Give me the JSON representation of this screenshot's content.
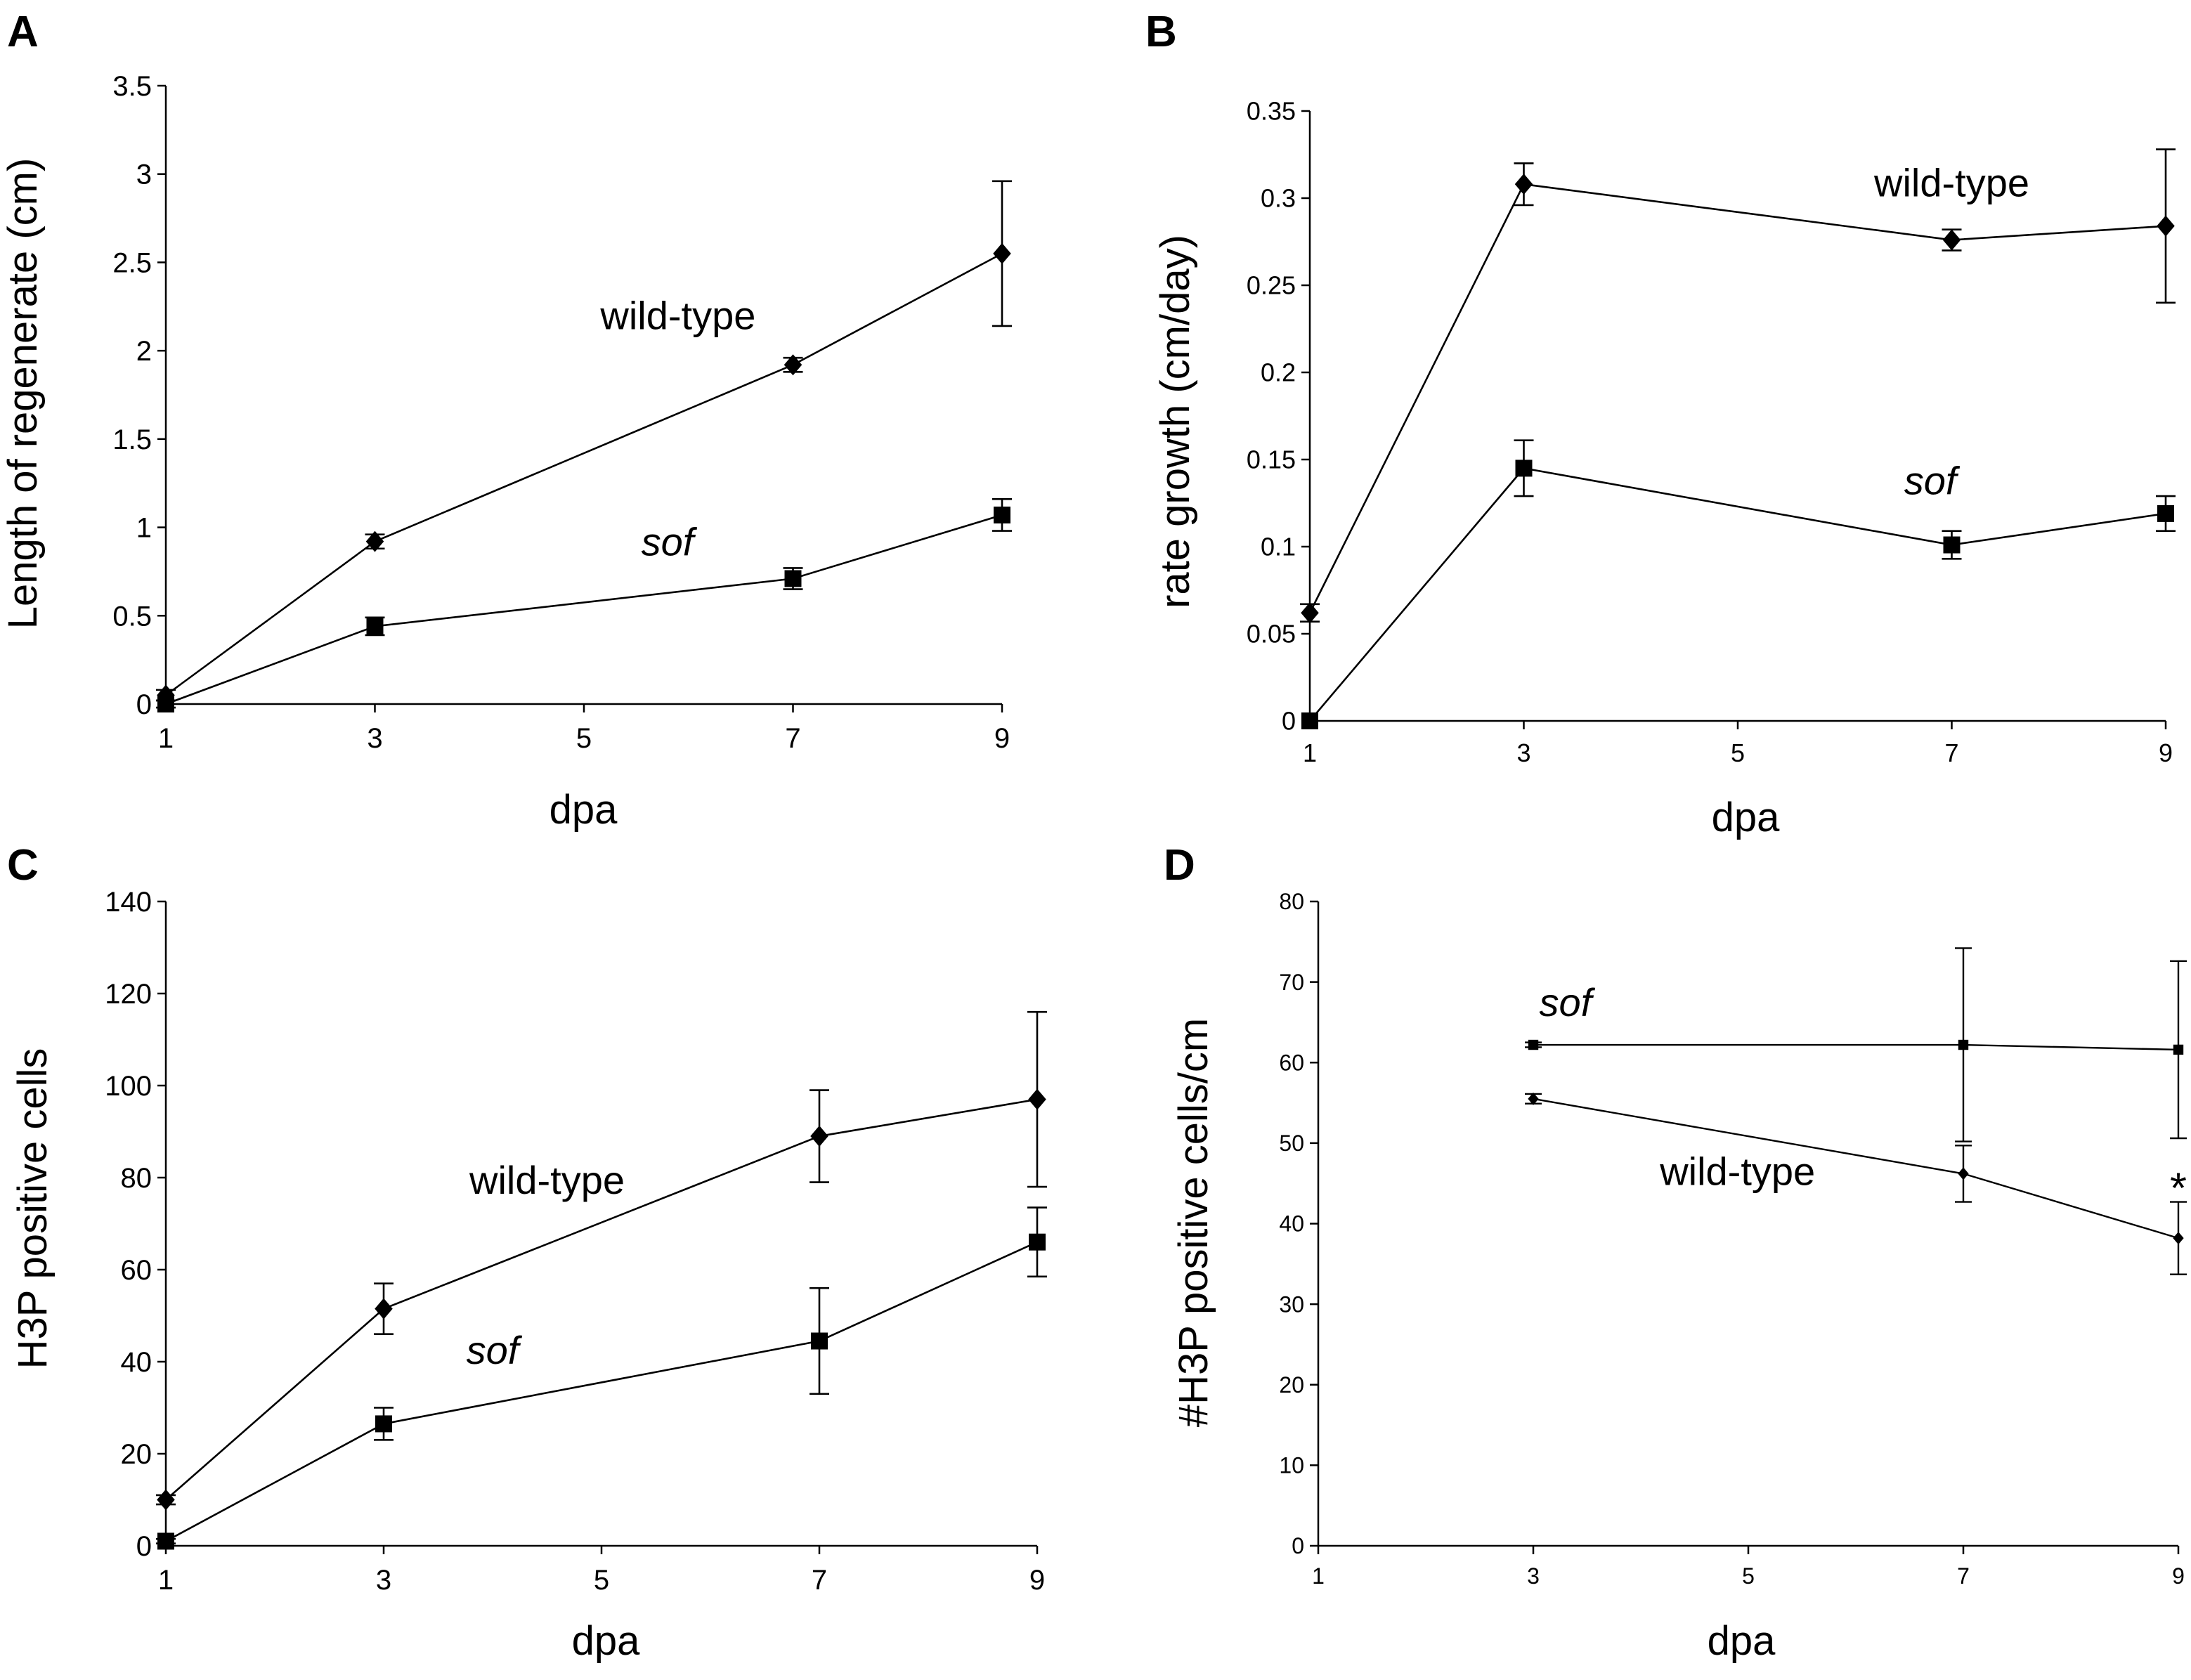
{
  "chart_data": [
    {
      "panel_label": "A",
      "type": "line",
      "xlabel": "dpa",
      "ylabel": "Length of regenerate (cm)",
      "xlim": [
        1,
        9
      ],
      "ylim": [
        0,
        3.5
      ],
      "x_ticks": [
        1,
        3,
        5,
        7,
        9
      ],
      "x_tick_labels": [
        "1",
        "3",
        "5",
        "7",
        "9"
      ],
      "y_ticks": [
        0,
        0.5,
        1,
        1.5,
        2,
        2.5,
        3,
        3.5
      ],
      "y_tick_labels": [
        "0",
        "0.5",
        "1",
        "1.5",
        "2",
        "2.5",
        "3",
        "3.5"
      ],
      "grid": false,
      "series": [
        {
          "label_key": "wild_type",
          "marker": "diamond",
          "x": [
            1,
            3,
            7,
            9
          ],
          "y": [
            0.05,
            0.92,
            1.92,
            2.55
          ],
          "err": [
            0.03,
            0.04,
            0.04,
            0.41
          ]
        },
        {
          "label_key": "sof",
          "marker": "square",
          "x": [
            1,
            3,
            7,
            9
          ],
          "y": [
            0.0,
            0.44,
            0.71,
            1.07
          ],
          "err": [
            0.02,
            0.05,
            0.06,
            0.09
          ]
        }
      ],
      "annotations": [
        {
          "text": "wild-type",
          "x": 5.9,
          "y": 2.2,
          "italic": false
        },
        {
          "text": "sof",
          "x": 5.8,
          "y": 0.92,
          "italic": true
        }
      ]
    },
    {
      "panel_label": "B",
      "type": "line",
      "xlabel": "dpa",
      "ylabel": "rate growth (cm/day)",
      "xlim": [
        1,
        9
      ],
      "ylim": [
        0,
        0.35
      ],
      "x_ticks": [
        1,
        3,
        5,
        7,
        9
      ],
      "x_tick_labels": [
        "1",
        "3",
        "5",
        "7",
        "9"
      ],
      "y_ticks": [
        0,
        0.05,
        0.1,
        0.15,
        0.2,
        0.25,
        0.3,
        0.35
      ],
      "y_tick_labels": [
        "0",
        "0.05",
        "0.1",
        "0.15",
        "0.2",
        "0.25",
        "0.3",
        "0.35"
      ],
      "grid": false,
      "series": [
        {
          "label_key": "wild_type",
          "marker": "diamond",
          "x": [
            1,
            3,
            7,
            9
          ],
          "y": [
            0.062,
            0.308,
            0.276,
            0.284
          ],
          "err": [
            0.005,
            0.012,
            0.006,
            0.044
          ]
        },
        {
          "label_key": "sof",
          "marker": "square",
          "x": [
            1,
            3,
            7,
            9
          ],
          "y": [
            0.0,
            0.145,
            0.101,
            0.119
          ],
          "err": [
            0.0,
            0.016,
            0.008,
            0.01
          ]
        }
      ],
      "annotations": [
        {
          "text": "wild-type",
          "x": 7.0,
          "y": 0.309,
          "italic": false
        },
        {
          "text": "sof",
          "x": 6.8,
          "y": 0.138,
          "italic": true
        }
      ]
    },
    {
      "panel_label": "C",
      "type": "line",
      "xlabel": "dpa",
      "ylabel": "H3P positive cells",
      "xlim": [
        1,
        9
      ],
      "ylim": [
        0,
        140
      ],
      "x_ticks": [
        1,
        3,
        5,
        7,
        9
      ],
      "x_tick_labels": [
        "1",
        "3",
        "5",
        "7",
        "9"
      ],
      "y_ticks": [
        0,
        20,
        40,
        60,
        80,
        100,
        120,
        140
      ],
      "y_tick_labels": [
        "0",
        "20",
        "40",
        "60",
        "80",
        "100",
        "120",
        "140"
      ],
      "grid": false,
      "series": [
        {
          "label_key": "wild_type",
          "marker": "diamond",
          "x": [
            1,
            3,
            7,
            9
          ],
          "y": [
            10,
            51.5,
            89,
            97
          ],
          "err": [
            1,
            5.5,
            10,
            19
          ]
        },
        {
          "label_key": "sof",
          "marker": "square",
          "x": [
            1,
            3,
            7,
            9
          ],
          "y": [
            1,
            26.5,
            44.5,
            66
          ],
          "err": [
            0.5,
            3.5,
            11.5,
            7.5
          ]
        }
      ],
      "annotations": [
        {
          "text": "wild-type",
          "x": 4.5,
          "y": 79.5,
          "italic": false
        },
        {
          "text": "sof",
          "x": 4.0,
          "y": 42.5,
          "italic": true
        }
      ]
    },
    {
      "panel_label": "D",
      "type": "line",
      "xlabel": "dpa",
      "ylabel": "#H3P positive cells/cm",
      "xlim": [
        1,
        9
      ],
      "ylim": [
        0,
        80
      ],
      "x_ticks": [
        1,
        3,
        5,
        7,
        9
      ],
      "x_tick_labels": [
        "1",
        "3",
        "5",
        "7",
        "9"
      ],
      "y_ticks": [
        0,
        10,
        20,
        30,
        40,
        50,
        60,
        70,
        80
      ],
      "y_tick_labels": [
        "0",
        "10",
        "20",
        "30",
        "40",
        "50",
        "60",
        "70",
        "80"
      ],
      "grid": false,
      "series": [
        {
          "label_key": "sof",
          "marker": "square",
          "x": [
            3,
            7,
            9
          ],
          "y": [
            62.2,
            62.2,
            61.6
          ],
          "err": [
            0.3,
            12.0,
            11.0
          ]
        },
        {
          "label_key": "wild_type",
          "marker": "diamond",
          "x": [
            3,
            7,
            9
          ],
          "y": [
            55.5,
            46.2,
            38.2
          ],
          "err": [
            0.6,
            3.5,
            4.5
          ]
        }
      ],
      "annotations": [
        {
          "text": "sof",
          "x": 3.3,
          "y": 67.5,
          "italic": true
        },
        {
          "text": "wild-type",
          "x": 4.9,
          "y": 46.5,
          "italic": false
        },
        {
          "text": "*",
          "x": 9.0,
          "y": 44.5,
          "italic": false
        }
      ]
    }
  ]
}
